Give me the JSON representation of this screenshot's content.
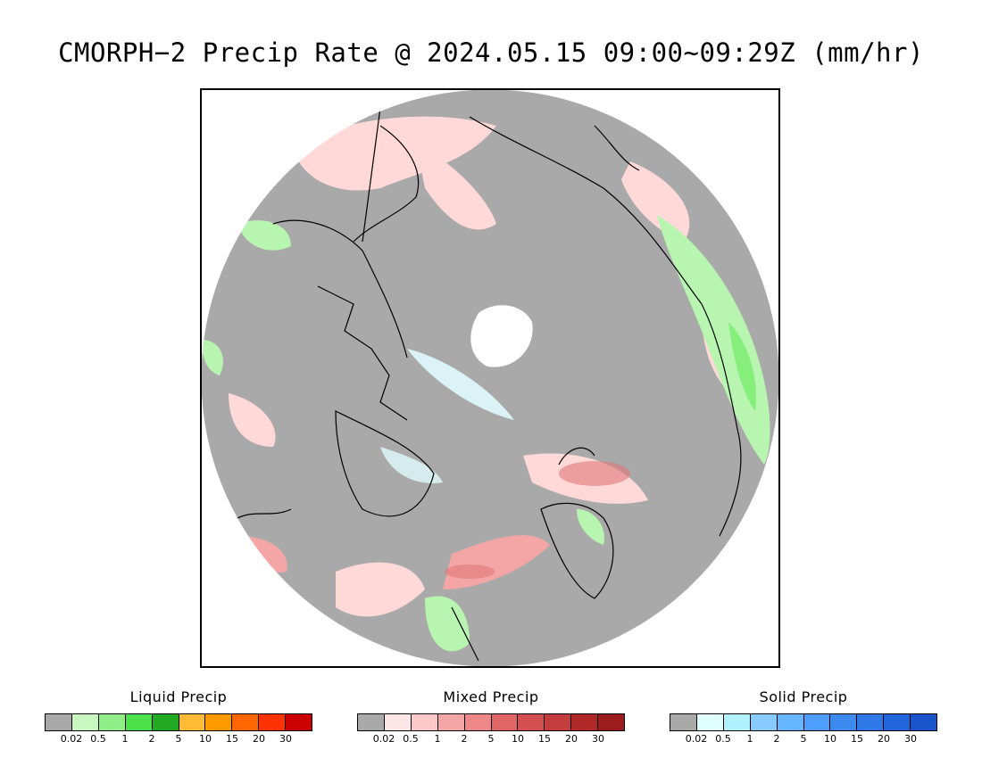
{
  "title": "CMORPH−2 Precip Rate @ 2024.05.15 09:00~09:29Z (mm/hr)",
  "map": {
    "colors": {
      "background_nodata": "#a9a9a9",
      "land_outline": "#000000",
      "mixed_light": "#ffd8d8",
      "mixed_medium": "#f4a6a6",
      "mixed_strong": "#e07878",
      "liquid_light": "#b8f5b0",
      "liquid_medium": "#86ee7a",
      "solid_light": "#e0fbff",
      "solid_very_light": "#ffffff"
    }
  },
  "legends": [
    {
      "title": "Liquid Precip",
      "colors": [
        "#a9a9a9",
        "#c8f7c0",
        "#90ee88",
        "#4ce04a",
        "#22aa22",
        "#ffbb33",
        "#ff9900",
        "#ff6600",
        "#ff3300",
        "#cc0000"
      ],
      "ticks": [
        "0.02",
        "0.5",
        "1",
        "2",
        "5",
        "10",
        "15",
        "20",
        "30"
      ]
    },
    {
      "title": "Mixed Precip",
      "colors": [
        "#a9a9a9",
        "#ffe6e6",
        "#ffc8c8",
        "#f4a6a6",
        "#ee8888",
        "#e06666",
        "#d45050",
        "#c43c3c",
        "#b02828",
        "#9a1c1c"
      ],
      "ticks": [
        "0.02",
        "0.5",
        "1",
        "2",
        "5",
        "10",
        "15",
        "20",
        "30"
      ]
    },
    {
      "title": "Solid Precip",
      "colors": [
        "#a9a9a9",
        "#e0ffff",
        "#b0f0ff",
        "#88ccff",
        "#66b5ff",
        "#4d9eff",
        "#3d8bf0",
        "#2f78e8",
        "#2266dd",
        "#1a55cc"
      ],
      "ticks": [
        "0.02",
        "0.5",
        "1",
        "2",
        "5",
        "10",
        "15",
        "20",
        "30"
      ]
    }
  ]
}
